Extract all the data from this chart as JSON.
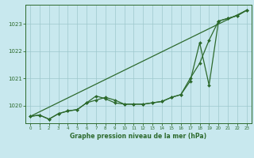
{
  "title": "Graphe pression niveau de la mer (hPa)",
  "background_color": "#c8e8ee",
  "plot_bg_color": "#c8e8ee",
  "grid_color": "#9dc8cc",
  "line_color": "#2d6a2d",
  "xlim": [
    -0.5,
    23.5
  ],
  "ylim": [
    1019.35,
    1023.7
  ],
  "yticks": [
    1020,
    1021,
    1022,
    1023
  ],
  "xticks": [
    0,
    1,
    2,
    3,
    4,
    5,
    6,
    7,
    8,
    9,
    10,
    11,
    12,
    13,
    14,
    15,
    16,
    17,
    18,
    19,
    20,
    21,
    22,
    23
  ],
  "series1_x": [
    0,
    1,
    2,
    3,
    4,
    5,
    6,
    7,
    8,
    9,
    10,
    11,
    12,
    13,
    14,
    15,
    16,
    17,
    18,
    19,
    20,
    21,
    22,
    23
  ],
  "series1_y": [
    1019.6,
    1019.65,
    1019.5,
    1019.7,
    1019.8,
    1019.85,
    1020.1,
    1020.2,
    1020.3,
    1020.2,
    1020.05,
    1020.05,
    1020.05,
    1020.1,
    1020.15,
    1020.3,
    1020.4,
    1021.0,
    1021.55,
    1022.4,
    1023.1,
    1023.2,
    1023.3,
    1023.5
  ],
  "series2_x": [
    0,
    1,
    2,
    3,
    4,
    5,
    6,
    7,
    8,
    9,
    10,
    11,
    12,
    13,
    14,
    15,
    16,
    17,
    18,
    19,
    20,
    21,
    22,
    23
  ],
  "series2_y": [
    1019.6,
    1019.65,
    1019.5,
    1019.7,
    1019.8,
    1019.85,
    1020.1,
    1020.35,
    1020.25,
    1020.1,
    1020.05,
    1020.05,
    1020.05,
    1020.1,
    1020.15,
    1020.3,
    1020.4,
    1020.9,
    1022.3,
    1020.75,
    1023.1,
    1023.2,
    1023.3,
    1023.5
  ],
  "series3_x": [
    0,
    23
  ],
  "series3_y": [
    1019.6,
    1023.5
  ],
  "marker_size": 2.0,
  "linewidth": 0.9
}
